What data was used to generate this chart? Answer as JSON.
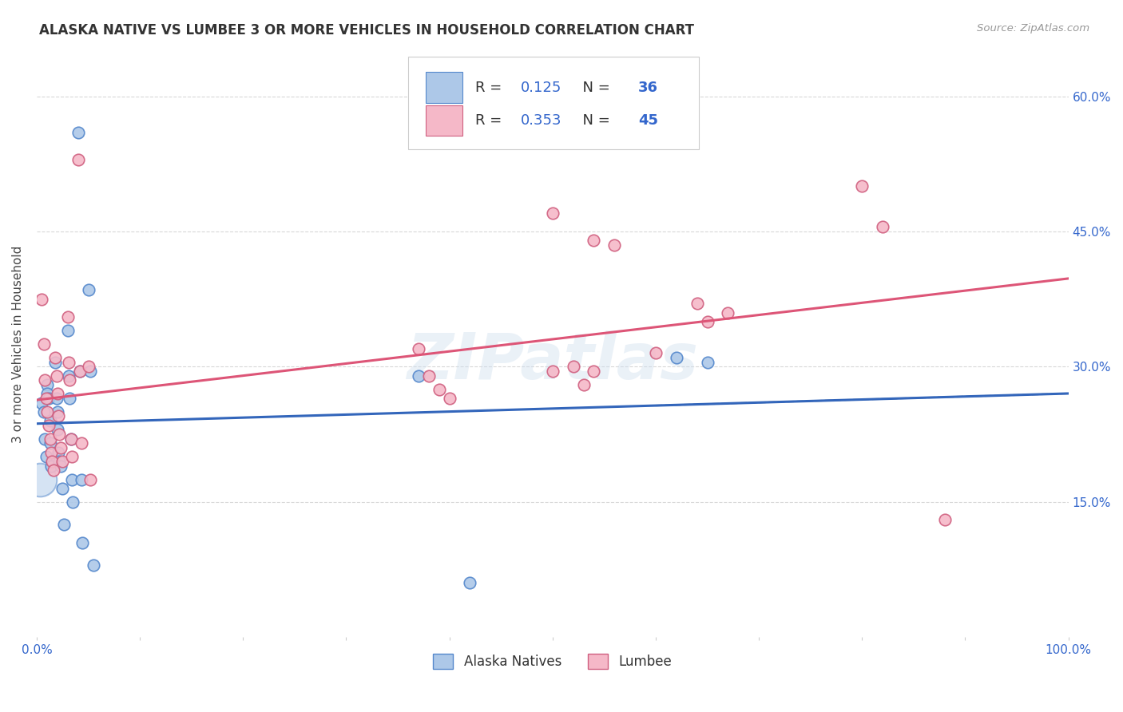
{
  "title": "ALASKA NATIVE VS LUMBEE 3 OR MORE VEHICLES IN HOUSEHOLD CORRELATION CHART",
  "source": "Source: ZipAtlas.com",
  "ylabel": "3 or more Vehicles in Household",
  "watermark": "ZIPatlas",
  "right_ytick_labels": [
    "60.0%",
    "45.0%",
    "30.0%",
    "15.0%"
  ],
  "right_ytick_vals": [
    0.6,
    0.45,
    0.3,
    0.15
  ],
  "alaska_R": 0.125,
  "alaska_N": 36,
  "lumbee_R": 0.353,
  "lumbee_N": 45,
  "alaska_scatter_color": "#adc8e8",
  "alaska_scatter_edge": "#5588cc",
  "lumbee_scatter_color": "#f5b8c8",
  "lumbee_scatter_edge": "#d06080",
  "alaska_line_color": "#3366bb",
  "lumbee_line_color": "#dd5577",
  "dashed_color": "#aaaaaa",
  "alaska_x": [
    0.005,
    0.007,
    0.008,
    0.009,
    0.01,
    0.01,
    0.012,
    0.013,
    0.013,
    0.014,
    0.018,
    0.019,
    0.02,
    0.02,
    0.021,
    0.022,
    0.023,
    0.025,
    0.026,
    0.03,
    0.031,
    0.032,
    0.033,
    0.034,
    0.035,
    0.04,
    0.042,
    0.043,
    0.044,
    0.05,
    0.052,
    0.055,
    0.37,
    0.42,
    0.62,
    0.65
  ],
  "alaska_y": [
    0.26,
    0.25,
    0.22,
    0.2,
    0.28,
    0.27,
    0.265,
    0.24,
    0.215,
    0.19,
    0.305,
    0.265,
    0.25,
    0.23,
    0.205,
    0.195,
    0.19,
    0.165,
    0.125,
    0.34,
    0.29,
    0.265,
    0.22,
    0.175,
    0.15,
    0.56,
    0.295,
    0.175,
    0.105,
    0.385,
    0.295,
    0.08,
    0.29,
    0.06,
    0.31,
    0.305
  ],
  "lumbee_x": [
    0.005,
    0.007,
    0.008,
    0.009,
    0.01,
    0.012,
    0.013,
    0.014,
    0.015,
    0.016,
    0.018,
    0.019,
    0.02,
    0.021,
    0.022,
    0.023,
    0.025,
    0.03,
    0.031,
    0.032,
    0.033,
    0.034,
    0.04,
    0.042,
    0.043,
    0.05,
    0.052,
    0.37,
    0.38,
    0.39,
    0.4,
    0.5,
    0.52,
    0.53,
    0.54,
    0.6,
    0.64,
    0.8,
    0.82,
    0.88,
    0.5,
    0.54,
    0.56,
    0.65,
    0.67
  ],
  "lumbee_y": [
    0.375,
    0.325,
    0.285,
    0.265,
    0.25,
    0.235,
    0.22,
    0.205,
    0.195,
    0.185,
    0.31,
    0.29,
    0.27,
    0.245,
    0.225,
    0.21,
    0.195,
    0.355,
    0.305,
    0.285,
    0.22,
    0.2,
    0.53,
    0.295,
    0.215,
    0.3,
    0.175,
    0.32,
    0.29,
    0.275,
    0.265,
    0.295,
    0.3,
    0.28,
    0.295,
    0.315,
    0.37,
    0.5,
    0.455,
    0.13,
    0.47,
    0.44,
    0.435,
    0.35,
    0.36
  ],
  "xlim": [
    0.0,
    1.0
  ],
  "ylim": [
    0.0,
    0.65
  ],
  "bg_color": "#ffffff",
  "grid_color": "#d8d8d8",
  "bottom_legend_alaska": "Alaska Natives",
  "bottom_legend_lumbee": "Lumbee"
}
